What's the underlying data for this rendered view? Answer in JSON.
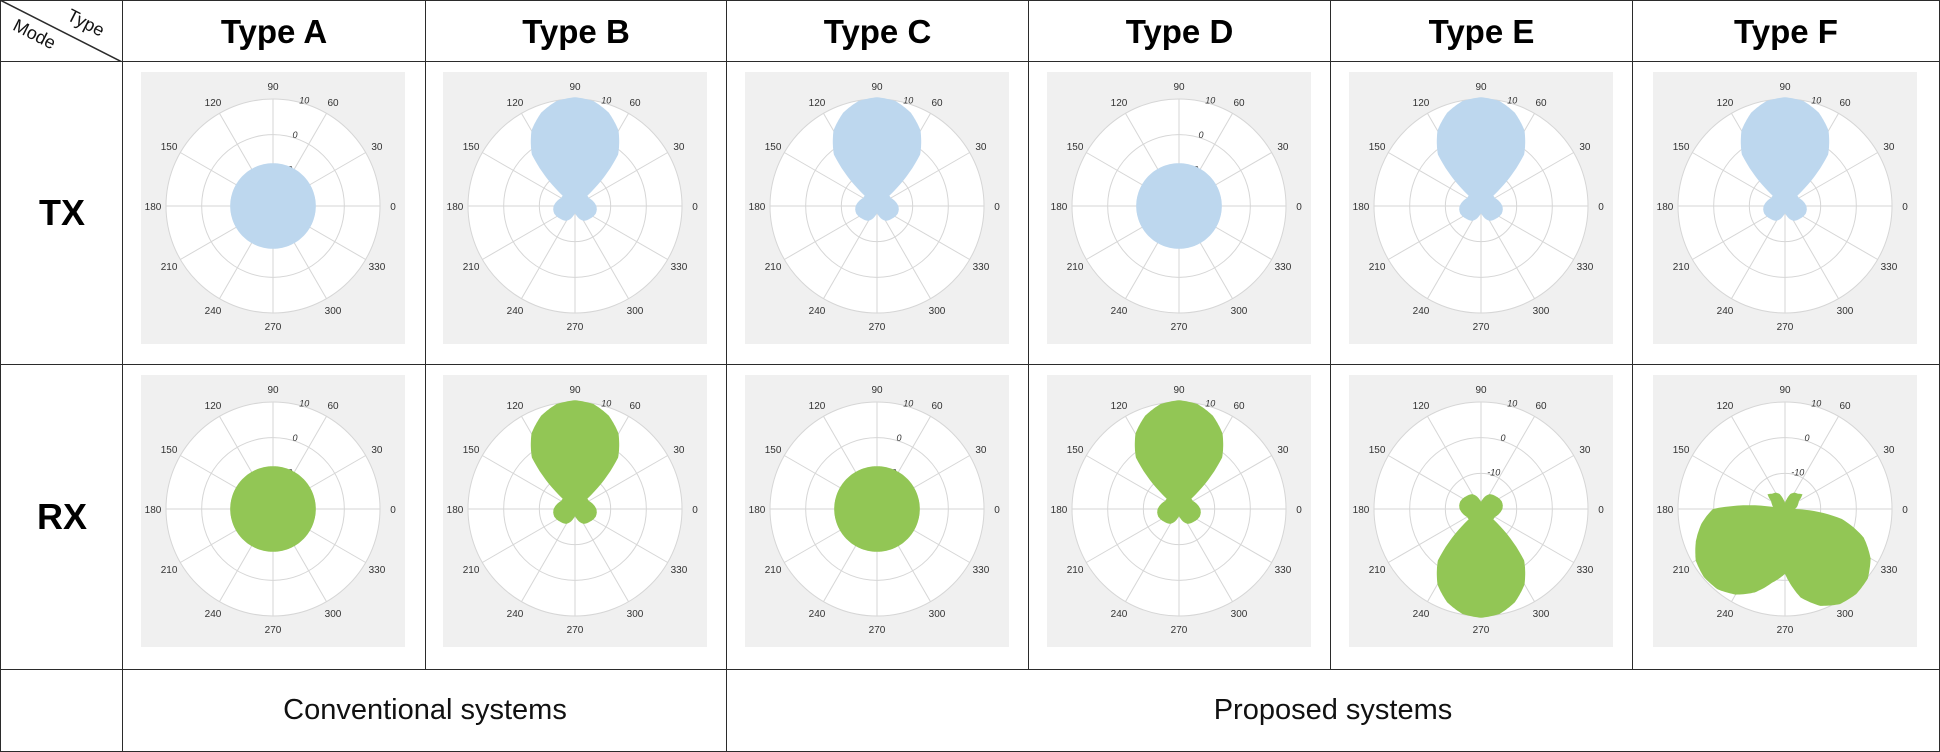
{
  "corner": {
    "top_label": "Type",
    "bottom_label": "Mode"
  },
  "columns": [
    "Type A",
    "Type B",
    "Type C",
    "Type D",
    "Type E",
    "Type F"
  ],
  "rows": [
    "TX",
    "RX"
  ],
  "footer": {
    "conventional": "Conventional systems",
    "proposed": "Proposed systems"
  },
  "colors": {
    "TX": "#bdd7ee",
    "RX": "#92c655",
    "panel_bg": "#f0f0f0",
    "grid": "#d6d6d6"
  },
  "chart_data": {
    "type": "polar",
    "rlim": [
      -20,
      10
    ],
    "radial_ticks": [
      -10,
      0,
      10
    ],
    "angle_ticks": [
      0,
      30,
      60,
      90,
      120,
      150,
      180,
      210,
      240,
      270,
      300,
      330
    ],
    "theta_deg": [
      0,
      10,
      20,
      30,
      40,
      50,
      60,
      70,
      80,
      90,
      100,
      110,
      120,
      130,
      140,
      150,
      160,
      170,
      180,
      190,
      200,
      210,
      220,
      230,
      240,
      250,
      260,
      270,
      280,
      290,
      300,
      310,
      320,
      330,
      340,
      350
    ],
    "series": [
      {
        "type": "Type A",
        "mode": "TX",
        "gain_db": [
          -8,
          -8,
          -8,
          -8,
          -8,
          -8,
          -8,
          -8,
          -8,
          -8,
          -8,
          -8,
          -8,
          -8,
          -8,
          -8,
          -8,
          -8,
          -8,
          -8,
          -8,
          -8,
          -8,
          -8,
          -8,
          -8,
          -8,
          -8,
          -8,
          -8,
          -8,
          -8,
          -8,
          -8,
          -8,
          -8
        ]
      },
      {
        "type": "Type B",
        "mode": "TX",
        "gain_db": [
          -14.0,
          -14.5,
          -15.0,
          -15.5,
          -15.5,
          -1.2,
          4.4,
          7.8,
          9.9,
          10.5,
          9.9,
          7.8,
          4.4,
          -1.2,
          -15.5,
          -15.5,
          -15.0,
          -14.5,
          -14.0,
          -13.8,
          -13.8,
          -14.1,
          -14.5,
          -14.8,
          -15.2,
          -16.1,
          -17.2,
          -18.0,
          -17.2,
          -16.1,
          -15.2,
          -14.8,
          -14.5,
          -14.1,
          -13.8,
          -13.8
        ]
      },
      {
        "type": "Type C",
        "mode": "TX",
        "gain_db": [
          -14.0,
          -14.5,
          -15.0,
          -15.5,
          -15.5,
          -1.2,
          4.4,
          7.8,
          9.9,
          10.5,
          9.9,
          7.8,
          4.4,
          -1.2,
          -15.5,
          -15.5,
          -15.0,
          -14.5,
          -14.0,
          -13.8,
          -13.8,
          -14.1,
          -14.5,
          -14.8,
          -15.2,
          -16.1,
          -17.2,
          -18.0,
          -17.2,
          -16.1,
          -15.2,
          -14.8,
          -14.5,
          -14.1,
          -13.8,
          -13.8
        ]
      },
      {
        "type": "Type D",
        "mode": "TX",
        "gain_db": [
          -8,
          -8,
          -8,
          -8,
          -8,
          -8,
          -8,
          -8,
          -8,
          -8,
          -8,
          -8,
          -8,
          -8,
          -8,
          -8,
          -8,
          -8,
          -8,
          -8,
          -8,
          -8,
          -8,
          -8,
          -8,
          -8,
          -8,
          -8,
          -8,
          -8,
          -8,
          -8,
          -8,
          -8,
          -8,
          -8
        ]
      },
      {
        "type": "Type E",
        "mode": "TX",
        "gain_db": [
          -14.0,
          -14.5,
          -15.0,
          -15.5,
          -15.5,
          -1.2,
          4.4,
          7.8,
          9.9,
          10.5,
          9.9,
          7.8,
          4.4,
          -1.2,
          -15.5,
          -15.5,
          -15.0,
          -14.5,
          -14.0,
          -13.8,
          -13.8,
          -14.1,
          -14.5,
          -14.8,
          -15.2,
          -16.1,
          -17.2,
          -18.0,
          -17.2,
          -16.1,
          -15.2,
          -14.8,
          -14.5,
          -14.1,
          -13.8,
          -13.8
        ]
      },
      {
        "type": "Type F",
        "mode": "TX",
        "gain_db": [
          -14.0,
          -14.5,
          -15.0,
          -15.5,
          -15.5,
          -1.2,
          4.4,
          7.8,
          9.9,
          10.5,
          9.9,
          7.8,
          4.4,
          -1.2,
          -15.5,
          -15.5,
          -15.0,
          -14.5,
          -14.0,
          -13.8,
          -13.8,
          -14.1,
          -14.5,
          -14.8,
          -15.2,
          -16.1,
          -17.2,
          -18.0,
          -17.2,
          -16.1,
          -15.2,
          -14.8,
          -14.5,
          -14.1,
          -13.8,
          -13.8
        ]
      },
      {
        "type": "Type A",
        "mode": "RX",
        "gain_db": [
          -8,
          -8,
          -8,
          -8,
          -8,
          -8,
          -8,
          -8,
          -8,
          -8,
          -8,
          -8,
          -8,
          -8,
          -8,
          -8,
          -8,
          -8,
          -8,
          -8,
          -8,
          -8,
          -8,
          -8,
          -8,
          -8,
          -8,
          -8,
          -8,
          -8,
          -8,
          -8,
          -8,
          -8,
          -8,
          -8
        ]
      },
      {
        "type": "Type B",
        "mode": "RX",
        "gain_db": [
          -14.0,
          -14.5,
          -15.0,
          -15.5,
          -15.5,
          -1.2,
          4.4,
          7.8,
          9.9,
          10.5,
          9.9,
          7.8,
          4.4,
          -1.2,
          -15.5,
          -15.5,
          -15.0,
          -14.5,
          -14.0,
          -13.8,
          -13.8,
          -14.1,
          -14.5,
          -14.8,
          -15.2,
          -16.1,
          -17.2,
          -18.0,
          -17.2,
          -16.1,
          -15.2,
          -14.8,
          -14.5,
          -14.1,
          -13.8,
          -13.8
        ]
      },
      {
        "type": "Type C",
        "mode": "RX",
        "gain_db": [
          -8,
          -8,
          -8,
          -8,
          -8,
          -8,
          -8,
          -8,
          -8,
          -8,
          -8,
          -8,
          -8,
          -8,
          -8,
          -8,
          -8,
          -8,
          -8,
          -8,
          -8,
          -8,
          -8,
          -8,
          -8,
          -8,
          -8,
          -8,
          -8,
          -8,
          -8,
          -8,
          -8,
          -8,
          -8,
          -8
        ]
      },
      {
        "type": "Type D",
        "mode": "RX",
        "gain_db": [
          -14.0,
          -14.5,
          -15.0,
          -15.5,
          -15.5,
          -1.2,
          4.4,
          7.8,
          9.9,
          10.5,
          9.9,
          7.8,
          4.4,
          -1.2,
          -15.5,
          -15.5,
          -15.0,
          -14.5,
          -14.0,
          -13.8,
          -13.8,
          -14.1,
          -14.5,
          -14.8,
          -15.2,
          -16.1,
          -17.2,
          -18.0,
          -17.2,
          -16.1,
          -15.2,
          -14.8,
          -14.5,
          -14.1,
          -13.8,
          -13.8
        ]
      },
      {
        "type": "Type E",
        "mode": "RX",
        "gain_db": [
          -14.0,
          -13.8,
          -13.8,
          -14.1,
          -14.5,
          -14.8,
          -15.2,
          -16.1,
          -17.2,
          -18.0,
          -17.2,
          -16.1,
          -15.2,
          -14.8,
          -14.5,
          -14.1,
          -13.8,
          -13.8,
          -14.0,
          -14.5,
          -15.0,
          -15.5,
          -15.5,
          -1.2,
          4.4,
          7.8,
          9.9,
          10.5,
          9.9,
          7.8,
          4.4,
          -1.2,
          -15.5,
          -15.5,
          -15.0,
          -14.5
        ]
      },
      {
        "type": "Type F",
        "mode": "RX",
        "gain_db": [
          -17.2,
          -16.6,
          -16.1,
          -15.5,
          -13.6,
          -14.4,
          -14.7,
          -15.5,
          -17.2,
          -18.3,
          -17.2,
          -15.5,
          -14.7,
          -14.4,
          -13.6,
          -15.5,
          -16.1,
          -16.6,
          0.2,
          3.8,
          6.6,
          8.9,
          9.7,
          9.4,
          7.7,
          4.9,
          1.0,
          -1.8,
          5.2,
          8.9,
          10.8,
          11.1,
          10.3,
          7.7,
          3.5,
          -3.8
        ]
      }
    ]
  }
}
